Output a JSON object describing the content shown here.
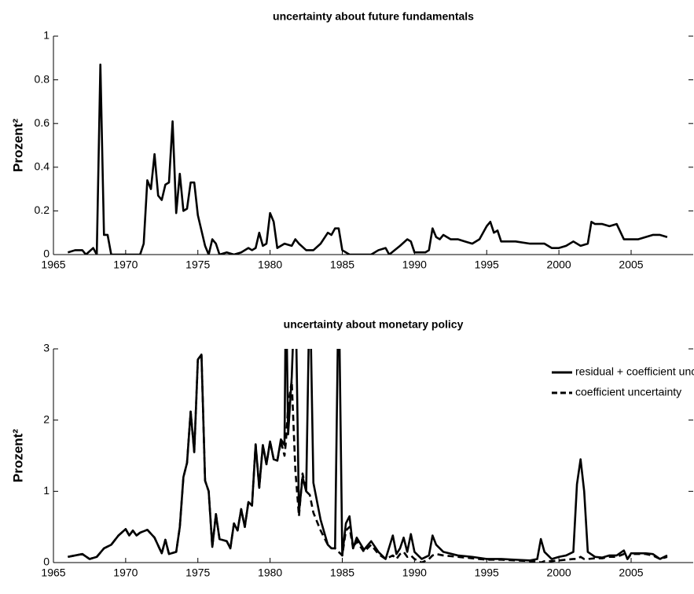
{
  "chart_data": [
    {
      "type": "line",
      "title": "uncertainty about future fundamentals",
      "y_label": "Prozent²",
      "x": [
        1966,
        1966.5,
        1967,
        1967.25,
        1967.75,
        1968,
        1968.25,
        1968.5,
        1968.75,
        1969,
        1970,
        1971,
        1971.25,
        1971.5,
        1971.75,
        1972,
        1972.25,
        1972.5,
        1972.75,
        1973,
        1973.25,
        1973.5,
        1973.75,
        1974,
        1974.25,
        1974.5,
        1974.75,
        1975,
        1975.5,
        1975.75,
        1976,
        1976.25,
        1976.5,
        1977,
        1977.5,
        1978,
        1978.5,
        1978.75,
        1979,
        1979.25,
        1979.5,
        1979.75,
        1980,
        1980.25,
        1980.5,
        1981,
        1981.5,
        1981.75,
        1982,
        1982.5,
        1983,
        1983.5,
        1984,
        1984.25,
        1984.5,
        1984.75,
        1985,
        1985.5,
        1987,
        1987.5,
        1988,
        1988.25,
        1989,
        1989.5,
        1989.75,
        1990,
        1990.75,
        1991,
        1991.25,
        1991.5,
        1991.75,
        1992,
        1992.5,
        1993,
        1993.5,
        1994,
        1994.5,
        1995,
        1995.25,
        1995.5,
        1995.75,
        1996,
        1997,
        1998,
        1999,
        1999.5,
        2000,
        2000.5,
        2001,
        2001.5,
        2002,
        2002.25,
        2002.5,
        2003,
        2003.5,
        2004,
        2004.5,
        2005,
        2005.5,
        2006,
        2006.5,
        2007,
        2007.5
      ],
      "values": [
        0.01,
        0.02,
        0.02,
        0,
        0.03,
        0,
        0.87,
        0.09,
        0.09,
        0,
        0,
        0,
        0.05,
        0.34,
        0.3,
        0.46,
        0.27,
        0.25,
        0.32,
        0.33,
        0.61,
        0.19,
        0.37,
        0.2,
        0.21,
        0.33,
        0.33,
        0.18,
        0.04,
        0,
        0.07,
        0.05,
        0,
        0.01,
        0,
        0.01,
        0.03,
        0.02,
        0.03,
        0.1,
        0.04,
        0.05,
        0.19,
        0.15,
        0.03,
        0.05,
        0.04,
        0.07,
        0.05,
        0.02,
        0.02,
        0.05,
        0.1,
        0.09,
        0.12,
        0.12,
        0.02,
        0,
        0,
        0.02,
        0.03,
        0,
        0.04,
        0.07,
        0.06,
        0.01,
        0.01,
        0.02,
        0.12,
        0.08,
        0.07,
        0.09,
        0.07,
        0.07,
        0.06,
        0.05,
        0.07,
        0.13,
        0.15,
        0.1,
        0.11,
        0.06,
        0.06,
        0.05,
        0.05,
        0.03,
        0.03,
        0.04,
        0.06,
        0.04,
        0.05,
        0.15,
        0.14,
        0.14,
        0.13,
        0.14,
        0.07,
        0.07,
        0.07,
        0.08,
        0.09,
        0.09,
        0.08
      ],
      "color": "#000000",
      "xlim": [
        1965,
        2009.3
      ],
      "ylim": [
        0,
        1
      ],
      "xticks": [
        1965,
        1970,
        1975,
        1980,
        1985,
        1990,
        1995,
        2000,
        2005
      ],
      "yticks": [
        0,
        0.2,
        0.4,
        0.6,
        0.8,
        1
      ]
    },
    {
      "type": "line",
      "title": "uncertainty about monetary policy",
      "y_label": "Prozent²",
      "x": [
        1966,
        1966.5,
        1967,
        1967.5,
        1968,
        1968.5,
        1969,
        1969.5,
        1970,
        1970.25,
        1970.5,
        1970.75,
        1971,
        1971.5,
        1972,
        1972.5,
        1972.75,
        1973,
        1973.5,
        1973.75,
        1974,
        1974.25,
        1974.5,
        1974.75,
        1975,
        1975.25,
        1975.5,
        1975.75,
        1976,
        1976.25,
        1976.5,
        1977,
        1977.25,
        1977.5,
        1977.75,
        1978,
        1978.25,
        1978.5,
        1978.75,
        1979,
        1979.25,
        1979.5,
        1979.75,
        1980,
        1980.25,
        1980.5,
        1980.75,
        1981,
        1981.1,
        1981.25,
        1981.5,
        1981.75,
        1982,
        1982.25,
        1982.5,
        1982.75,
        1983,
        1983.5,
        1984,
        1984.25,
        1984.5,
        1984.75,
        1985,
        1985.25,
        1985.5,
        1985.75,
        1986,
        1986.5,
        1987,
        1987.5,
        1988,
        1988.5,
        1988.75,
        1989,
        1989.25,
        1989.5,
        1989.75,
        1990,
        1990.5,
        1991,
        1991.25,
        1991.5,
        1992,
        1993,
        1994,
        1995,
        1996,
        1997,
        1998,
        1998.5,
        1998.75,
        1999,
        1999.5,
        2000,
        2000.5,
        2001,
        2001.25,
        2001.5,
        2001.75,
        2002,
        2002.5,
        2003,
        2003.5,
        2004,
        2004.5,
        2004.75,
        2005,
        2006,
        2006.5,
        2007,
        2007.5
      ],
      "series": [
        {
          "name": "residual + coefficient uncertainty",
          "color": "#000000",
          "linestyle": "solid",
          "values": [
            0.08,
            0.1,
            0.12,
            0.05,
            0.08,
            0.2,
            0.25,
            0.38,
            0.47,
            0.38,
            0.45,
            0.38,
            0.42,
            0.46,
            0.35,
            0.13,
            0.32,
            0.12,
            0.15,
            0.5,
            1.2,
            1.4,
            2.12,
            1.55,
            2.85,
            2.92,
            1.15,
            1,
            0.22,
            0.68,
            0.33,
            0.3,
            0.2,
            0.55,
            0.45,
            0.75,
            0.5,
            0.85,
            0.8,
            1.66,
            1.05,
            1.65,
            1.38,
            1.7,
            1.45,
            1.43,
            1.73,
            1.65,
            4,
            1.8,
            2.6,
            4,
            0.7,
            1.2,
            1,
            4,
            1.12,
            0.6,
            0.25,
            0.2,
            0.2,
            4,
            0.1,
            0.55,
            0.65,
            0.2,
            0.35,
            0.18,
            0.3,
            0.15,
            0.05,
            0.38,
            0.12,
            0.2,
            0.35,
            0.15,
            0.4,
            0.15,
            0.05,
            0.1,
            0.38,
            0.25,
            0.15,
            0.1,
            0.08,
            0.05,
            0.05,
            0.04,
            0.03,
            0.05,
            0.33,
            0.15,
            0.05,
            0.08,
            0.1,
            0.15,
            1.1,
            1.45,
            1,
            0.15,
            0.08,
            0.07,
            0.1,
            0.1,
            0.17,
            0.05,
            0.13,
            0.13,
            0.12,
            0.05,
            0.1
          ]
        },
        {
          "name": "coefficient uncertainty",
          "color": "#000000",
          "linestyle": "dashed",
          "values": [
            0.08,
            0.1,
            0.12,
            0.05,
            0.08,
            0.2,
            0.25,
            0.38,
            0.47,
            0.38,
            0.45,
            0.38,
            0.42,
            0.46,
            0.35,
            0.13,
            0.32,
            0.12,
            0.15,
            0.5,
            1.2,
            1.4,
            2.12,
            1.55,
            2.85,
            2.92,
            1.15,
            1,
            0.22,
            0.68,
            0.33,
            0.3,
            0.2,
            0.55,
            0.45,
            0.75,
            0.5,
            0.85,
            0.8,
            1.66,
            1.05,
            1.65,
            1.38,
            1.7,
            1.45,
            1.43,
            1.7,
            1.5,
            1.7,
            2.2,
            2.55,
            1.3,
            0.65,
            1.25,
            1,
            0.95,
            0.7,
            0.45,
            0.25,
            0.2,
            0.2,
            0.15,
            0.1,
            0.45,
            0.5,
            0.2,
            0.3,
            0.15,
            0.25,
            0.12,
            0.05,
            0.1,
            0.05,
            0.12,
            0.15,
            0.08,
            0.1,
            0.05,
            0,
            0.05,
            0.1,
            0.12,
            0.1,
            0.08,
            0.06,
            0.04,
            0.04,
            0.03,
            0.02,
            0.02,
            0,
            0.02,
            0.02,
            0.03,
            0.04,
            0.05,
            0.05,
            0.08,
            0.05,
            0.05,
            0.06,
            0.06,
            0.08,
            0.08,
            0.12,
            0.05,
            0.12,
            0.12,
            0.1,
            0.05,
            0.08
          ]
        }
      ],
      "legend": "upper right",
      "xlim": [
        1965,
        2009.3
      ],
      "ylim": [
        0,
        3
      ],
      "xticks": [
        1965,
        1970,
        1975,
        1980,
        1985,
        1990,
        1995,
        2000,
        2005
      ],
      "yticks": [
        0,
        1,
        2,
        3
      ]
    }
  ]
}
